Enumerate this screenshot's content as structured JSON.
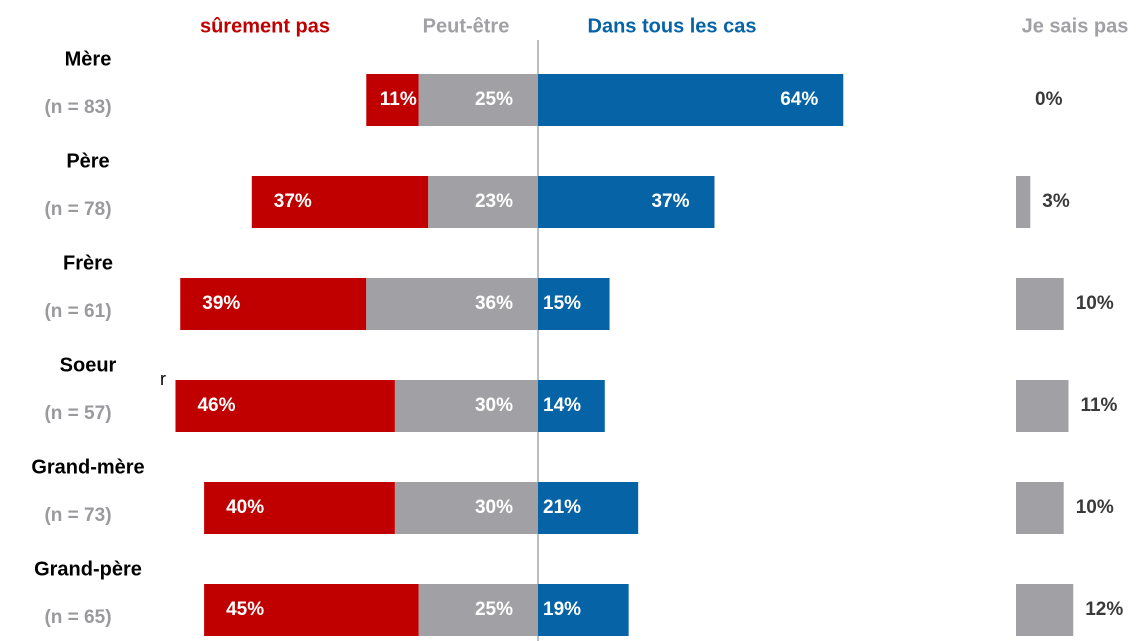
{
  "chart_data": {
    "type": "diverging-bar",
    "categories": [
      "Mère",
      "Père",
      "Frère",
      "Soeur",
      "Grand-mère",
      "Grand-père"
    ],
    "category_notes": [
      "(n = 83)",
      "(n = 78)",
      "(n = 61)",
      "(n = 57)",
      "(n = 73)",
      "(n = 65)"
    ],
    "annotation": "r",
    "series": [
      {
        "name": "sûrement pas",
        "color": "#c00000",
        "side": "left",
        "values": [
          11,
          37,
          39,
          46,
          40,
          45
        ],
        "value_labels": [
          "11%",
          "37%",
          "39%",
          "46%",
          "40%",
          "45%"
        ]
      },
      {
        "name": "Peut-être",
        "color": "#a1a1a5",
        "side": "left",
        "values": [
          25,
          23,
          36,
          30,
          30,
          25
        ],
        "value_labels": [
          "25%",
          "23%",
          "36%",
          "30%",
          "30%",
          "25%"
        ]
      },
      {
        "name": "Dans tous les cas",
        "color": "#0563a6",
        "side": "right",
        "values": [
          64,
          37,
          15,
          14,
          21,
          19
        ],
        "value_labels": [
          "64%",
          "37%",
          "15%",
          "14%",
          "21%",
          "19%"
        ]
      },
      {
        "name": "Je sais pas",
        "color": "#a1a1a5",
        "side": "separate",
        "values": [
          0,
          3,
          10,
          11,
          10,
          12
        ],
        "value_labels": [
          "0%",
          "3%",
          "10%",
          "11%",
          "10%",
          "12%"
        ]
      }
    ]
  }
}
